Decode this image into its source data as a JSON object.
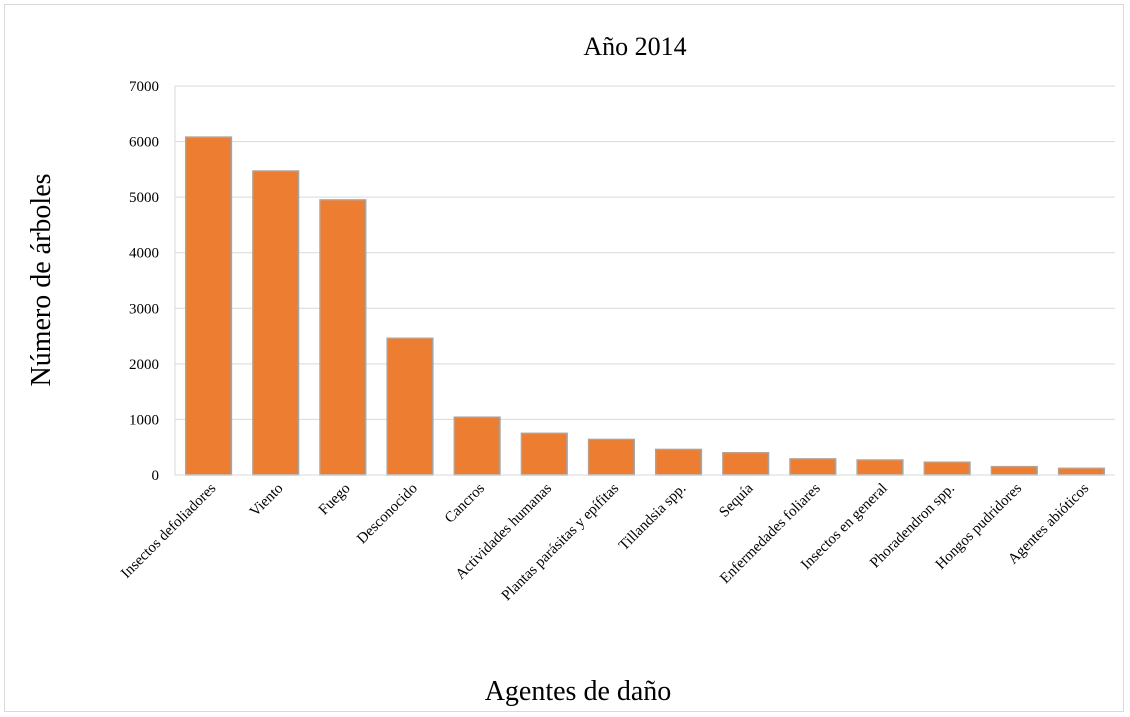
{
  "chart_data": {
    "type": "bar",
    "title": "Año 2014",
    "xlabel": "Agentes de daño",
    "ylabel": "Número de árboles",
    "ylim": [
      0,
      7000
    ],
    "yticks": [
      0,
      1000,
      2000,
      3000,
      4000,
      5000,
      6000,
      7000
    ],
    "grid": true,
    "categories": [
      "Insectos defoliadores",
      "Viento",
      "Fuego",
      "Desconocido",
      "Cancros",
      "Actividades humanas",
      "Plantas parásitas y epífitas",
      "Tillandsia spp.",
      "Sequía",
      "Enfermedades foliares",
      "Insectos en general",
      "Phoradendron spp.",
      "Hongos pudridores",
      "Agentes abióticos"
    ],
    "values": [
      6080,
      5470,
      4950,
      2460,
      1040,
      750,
      640,
      460,
      400,
      290,
      270,
      230,
      150,
      120
    ],
    "bar_color": "#ED7D31",
    "bar_edge_color": "#A5A5A5",
    "grid_color": "#D9D9D9"
  }
}
